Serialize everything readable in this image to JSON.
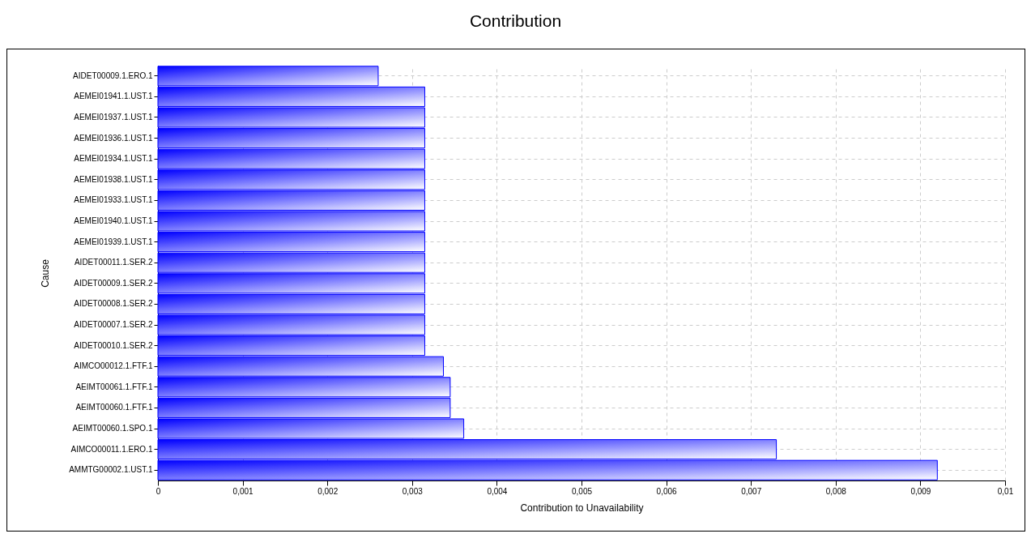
{
  "chart_data": {
    "type": "bar",
    "orientation": "horizontal",
    "title": "Contribution",
    "xlabel": "Contribution to Unavailability",
    "ylabel": "Cause",
    "categories": [
      "AIDET00009.1.ERO.1",
      "AEMEI01941.1.UST.1",
      "AEMEI01937.1.UST.1",
      "AEMEI01936.1.UST.1",
      "AEMEI01934.1.UST.1",
      "AEMEI01938.1.UST.1",
      "AEMEI01933.1.UST.1",
      "AEMEI01940.1.UST.1",
      "AEMEI01939.1.UST.1",
      "AIDET00011.1.SER.2",
      "AIDET00009.1.SER.2",
      "AIDET00008.1.SER.2",
      "AIDET00007.1.SER.2",
      "AIDET00010.1.SER.2",
      "AIMCO00012.1.FTF.1",
      "AEIMT00061.1.FTF.1",
      "AEIMT00060.1.FTF.1",
      "AEIMT00060.1.SPO.1",
      "AIMCO00011.1.ERO.1",
      "AMMTG00002.1.UST.1"
    ],
    "values": [
      0.0026,
      0.00315,
      0.00315,
      0.00315,
      0.00315,
      0.00315,
      0.00315,
      0.00315,
      0.00315,
      0.00315,
      0.00315,
      0.00315,
      0.00315,
      0.00315,
      0.00337,
      0.00345,
      0.00345,
      0.00361,
      0.0073,
      0.0092
    ],
    "color": "#0000ff",
    "xlim": [
      0,
      0.01
    ],
    "xticks": [
      0,
      {
        "value": 0.001,
        "label": "0,001"
      },
      {
        "value": 0.002,
        "label": "0,002"
      },
      {
        "value": 0.003,
        "label": "0,003"
      },
      {
        "value": 0.004,
        "label": "0,004"
      },
      {
        "value": 0.005,
        "label": "0,005"
      },
      {
        "value": 0.006,
        "label": "0,006"
      },
      {
        "value": 0.007,
        "label": "0,007"
      },
      {
        "value": 0.008,
        "label": "0,008"
      },
      {
        "value": 0.009,
        "label": "0,009"
      },
      {
        "value": 0.01,
        "label": "0,01"
      }
    ],
    "grid": true
  }
}
